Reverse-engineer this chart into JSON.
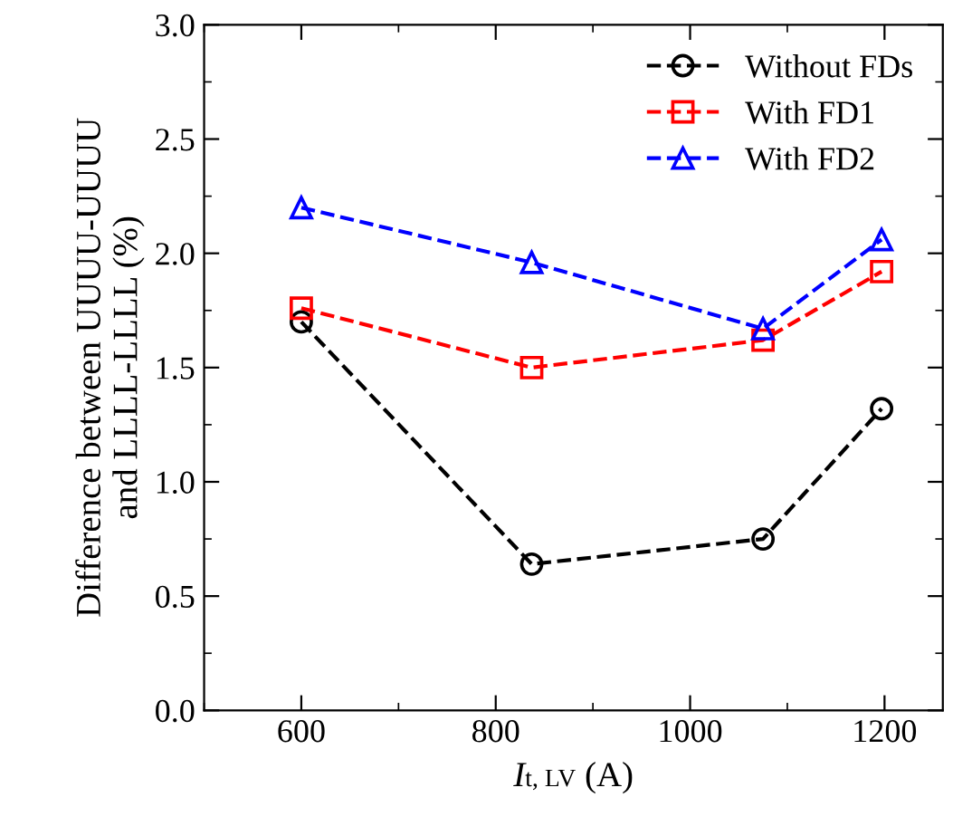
{
  "chart_data": {
    "type": "line",
    "xlabel": "I$_{t, LV}$ (A)",
    "ylabel": "Difference between UUUU-UUUU\nand LLLL-LLLL (%)",
    "xlim": [
      500,
      1260
    ],
    "xticks": [
      600,
      800,
      1000,
      1200
    ],
    "ylim": [
      0,
      3
    ],
    "yticks": [
      {
        "value": 0,
        "label": "0.0"
      },
      {
        "value": 0.5,
        "label": "0.5"
      },
      {
        "value": 1,
        "label": "1.0"
      },
      {
        "value": 1.5,
        "label": "1.5"
      },
      {
        "value": 2,
        "label": "2.0"
      },
      {
        "value": 2.5,
        "label": "2.5"
      },
      {
        "value": 3,
        "label": "3.0"
      }
    ],
    "line_style": "dashed",
    "grid": false,
    "legend": "top right",
    "series": [
      {
        "name": "Without FDs",
        "color": "#000000",
        "marker": "circle",
        "x": [
          600,
          837,
          1075,
          1197
        ],
        "values": [
          1.7,
          0.64,
          0.75,
          1.32
        ]
      },
      {
        "name": "With FD1",
        "color": "#ff0000",
        "marker": "square",
        "x": [
          600,
          837,
          1075,
          1197
        ],
        "values": [
          1.76,
          1.5,
          1.62,
          1.92
        ]
      },
      {
        "name": "With FD2",
        "color": "#0000ff",
        "marker": "triangle",
        "x": [
          600,
          837,
          1075,
          1197
        ],
        "values": [
          2.2,
          1.96,
          1.67,
          2.06
        ]
      }
    ]
  }
}
